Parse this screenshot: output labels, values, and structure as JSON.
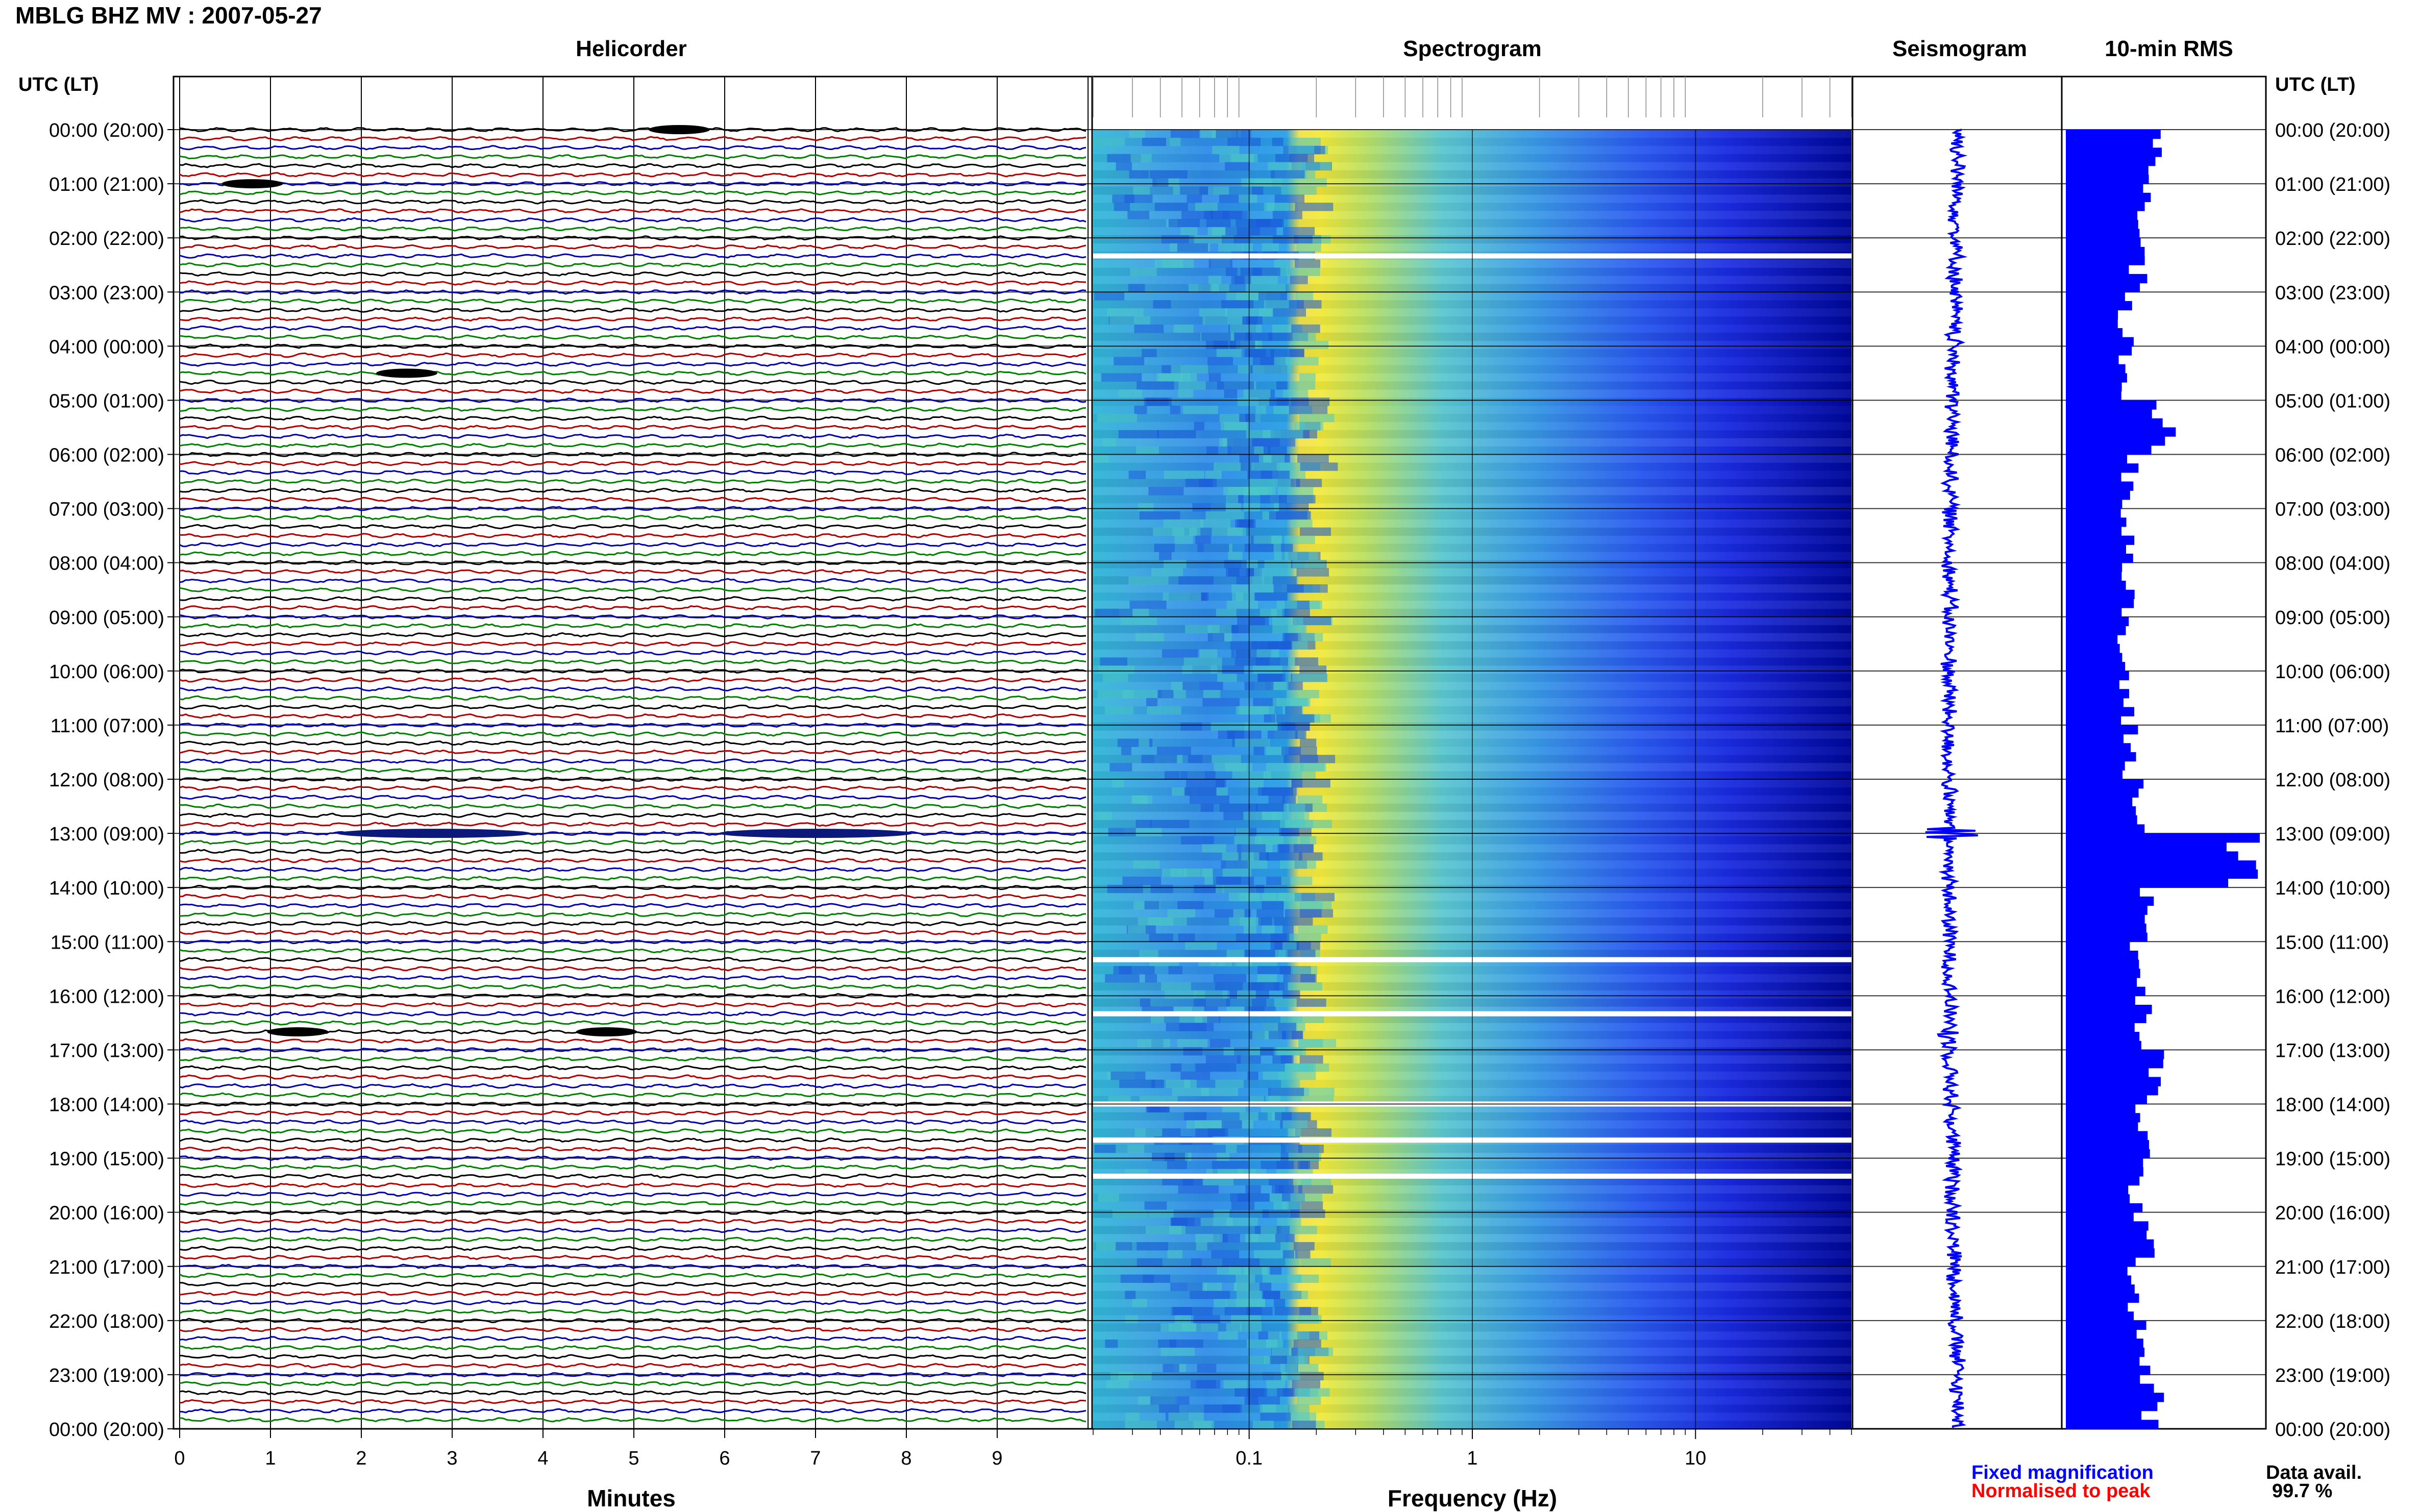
{
  "header": {
    "title": "MBLG BHZ MV : 2007-05-27",
    "utc_label_left": "UTC (LT)",
    "utc_label_right": "UTC (LT)"
  },
  "panels": {
    "helicorder": "Helicorder",
    "spectrogram": "Spectrogram",
    "seismogram": "Seismogram",
    "rms": "10-min RMS"
  },
  "time_labels": [
    "00:00 (20:00)",
    "01:00 (21:00)",
    "02:00 (22:00)",
    "03:00 (23:00)",
    "04:00 (00:00)",
    "05:00 (01:00)",
    "06:00 (02:00)",
    "07:00 (03:00)",
    "08:00 (04:00)",
    "09:00 (05:00)",
    "10:00 (06:00)",
    "11:00 (07:00)",
    "12:00 (08:00)",
    "13:00 (09:00)",
    "14:00 (10:00)",
    "15:00 (11:00)",
    "16:00 (12:00)",
    "17:00 (13:00)",
    "18:00 (14:00)",
    "19:00 (15:00)",
    "20:00 (16:00)",
    "21:00 (17:00)",
    "22:00 (18:00)",
    "23:00 (19:00)",
    "00:00 (20:00)"
  ],
  "axes": {
    "helicorder_xlabel": "Minutes",
    "helicorder_ticks": [
      "0",
      "1",
      "2",
      "3",
      "4",
      "5",
      "6",
      "7",
      "8",
      "9"
    ],
    "spectrogram_xlabel": "Frequency (Hz)",
    "spectrogram_ticks": [
      "0.1",
      "1",
      "10"
    ]
  },
  "legend": {
    "fixed": "Fixed magnification",
    "normalised": "Normalised to peak",
    "fixed_color": "#0000ff",
    "normalised_color": "#ff0000"
  },
  "availability": {
    "label": "Data avail.",
    "value": "99.7 %"
  },
  "colors": {
    "trace_cycle": [
      "#000000",
      "#b00000",
      "#0000b0",
      "#008000"
    ],
    "rms_bar": "#0000ff",
    "seismogram": "#0000ff"
  },
  "chart_data": {
    "type": "heatmap",
    "title": "MBLG BHZ MV : 2007-05-27",
    "helicorder": {
      "xlabel": "Minutes",
      "xlim": [
        0,
        10
      ],
      "rows_per_hour": 6,
      "hours": 24,
      "events": [
        {
          "time_utc": "00:00",
          "minute": 5.5
        },
        {
          "time_utc": "01:00",
          "minute": 0.8
        },
        {
          "time_utc": "04:30",
          "minute": 2.5
        },
        {
          "time_utc": "13:00",
          "minute": 2.8
        },
        {
          "time_utc": "13:00",
          "minute": 7.0
        },
        {
          "time_utc": "16:40",
          "minute": 1.3
        },
        {
          "time_utc": "16:40",
          "minute": 4.7
        }
      ]
    },
    "spectrogram": {
      "xlabel": "Frequency (Hz)",
      "xscale": "log",
      "xlim": [
        0.02,
        50
      ],
      "peak_band_hz": [
        0.2,
        0.35
      ],
      "data_gaps_utc": [
        "02:20",
        "15:20",
        "16:20",
        "18:00",
        "18:40",
        "19:20"
      ]
    },
    "rms_10min": {
      "unit_note": "relative",
      "hours": [
        0,
        1,
        2,
        3,
        4,
        5,
        6,
        7,
        8,
        9,
        10,
        11,
        12,
        13,
        14,
        15,
        16,
        17,
        18,
        19,
        20,
        21,
        22,
        23
      ],
      "values": [
        0.42,
        0.38,
        0.33,
        0.28,
        0.27,
        0.45,
        0.3,
        0.3,
        0.28,
        0.26,
        0.28,
        0.3,
        0.33,
        0.85,
        0.36,
        0.33,
        0.36,
        0.4,
        0.36,
        0.33,
        0.36,
        0.33,
        0.36,
        0.4
      ]
    }
  }
}
